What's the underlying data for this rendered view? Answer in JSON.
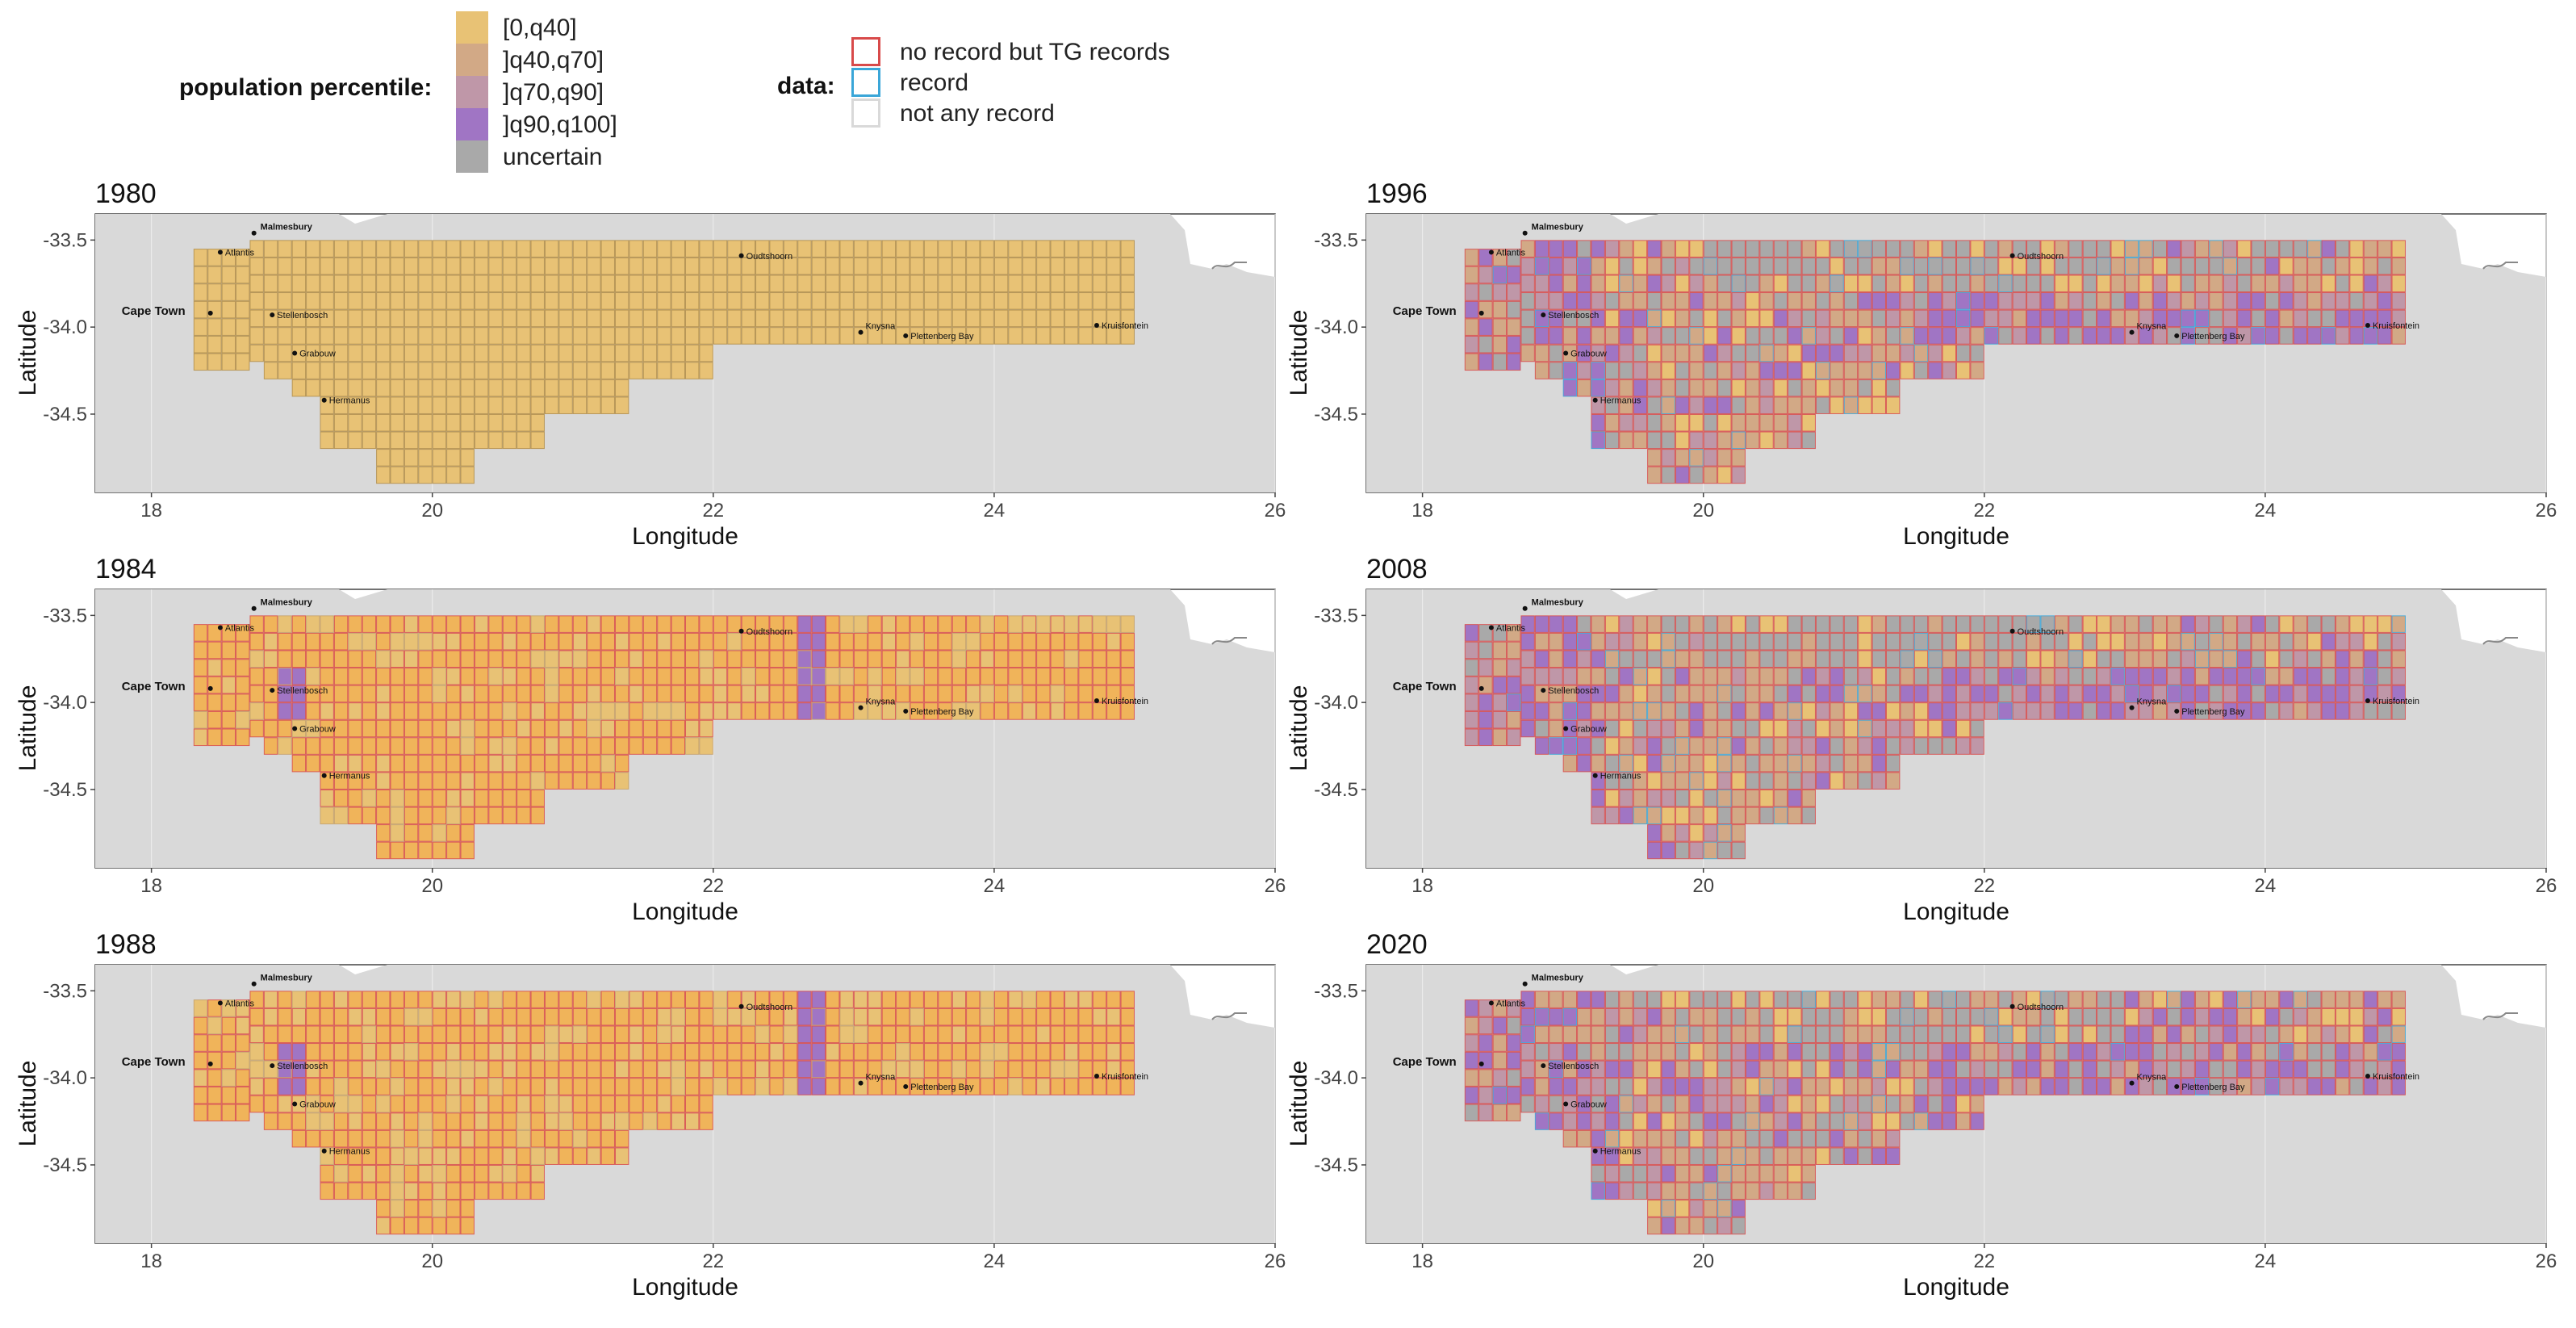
{
  "legend": {
    "population_title": "population percentile:",
    "population_items": [
      {
        "label": "[0,q40]",
        "color": "#e8c275"
      },
      {
        "label": "]q40,q70]",
        "color": "#d2a986"
      },
      {
        "label": "]q70,q90]",
        "color": "#bf97a8"
      },
      {
        "label": "]q90,q100]",
        "color": "#a075c4"
      },
      {
        "label": "uncertain",
        "color": "#a9a9a9"
      }
    ],
    "data_title": "data:",
    "data_items": [
      {
        "label": "no record but TG records",
        "color": "#d84a4a"
      },
      {
        "label": "record",
        "color": "#3aa6d8"
      },
      {
        "label": "not any record",
        "color": "#d9d9d9"
      }
    ]
  },
  "axes": {
    "xlabel": "Longitude",
    "ylabel": "Latitude",
    "xticks": [
      "18",
      "20",
      "22",
      "24",
      "26"
    ],
    "yticks": [
      "-33.5",
      "-34.0",
      "-34.5"
    ]
  },
  "towns": {
    "malmesbury": "Malmesbury",
    "atlantis": "Atlantis",
    "cape_town": "Cape Town",
    "stellenbosch": "Stellenbosch",
    "grabouw": "Grabouw",
    "hermanus": "Hermanus",
    "oudtshoorn": "Oudtshoorn",
    "knysna": "Knysna",
    "plettenberg_bay": "Plettenberg Bay",
    "kruisfontein": "Kruisfontein"
  },
  "chart_data": {
    "type": "map",
    "panels": [
      {
        "year": "1980",
        "pattern": "uniform",
        "border": "data"
      },
      {
        "year": "1984",
        "pattern": "orange",
        "border": "red"
      },
      {
        "year": "1988",
        "pattern": "orange",
        "border": "red"
      },
      {
        "year": "1996",
        "pattern": "mixed",
        "border": "red"
      },
      {
        "year": "2008",
        "pattern": "mixed",
        "border": "red"
      },
      {
        "year": "2020",
        "pattern": "mixed",
        "border": "red"
      }
    ],
    "xlim": [
      17.6,
      26
    ],
    "ylim": [
      -34.95,
      -33.35
    ],
    "grid_extent": {
      "lon_min": 18.3,
      "lon_max": 25.0,
      "lat_min": -34.83,
      "lat_max": -33.5
    },
    "cell_size_deg": 0.1
  }
}
